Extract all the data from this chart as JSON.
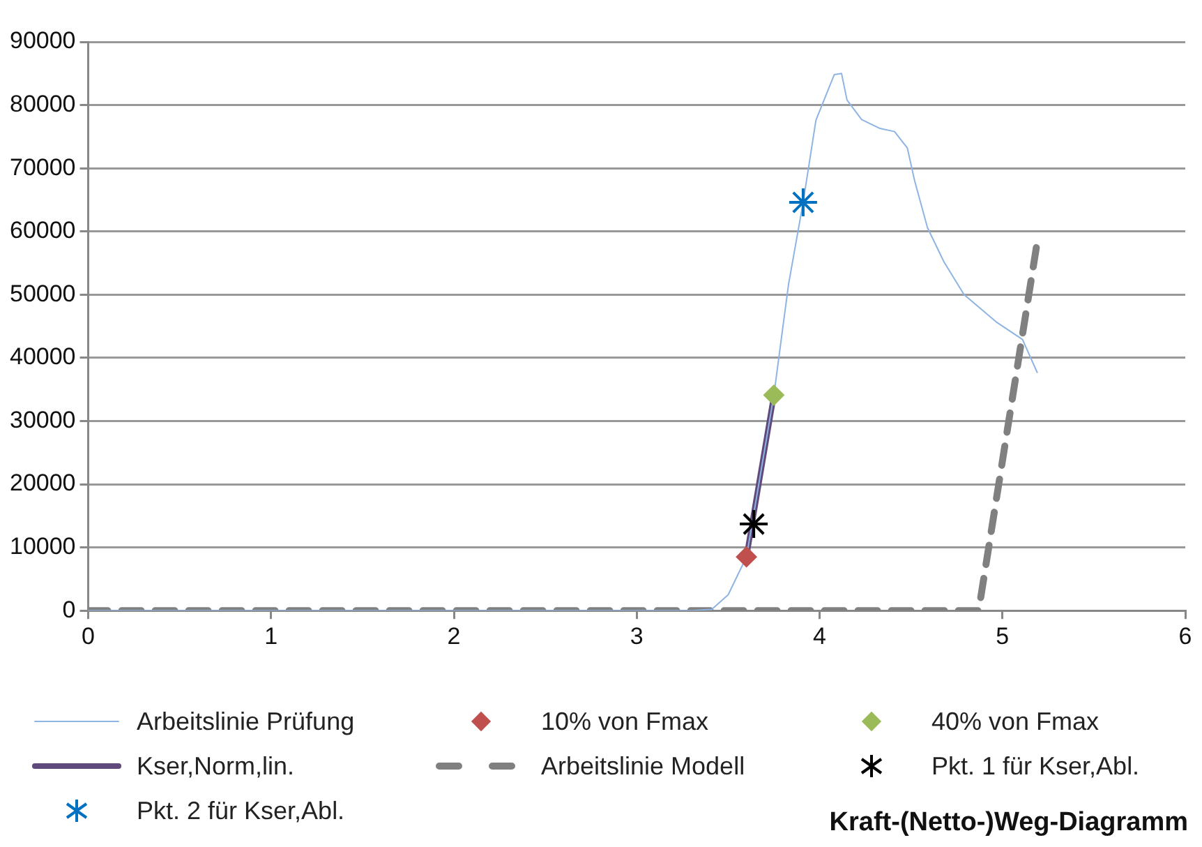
{
  "chart_data": {
    "type": "line",
    "title": "Kraft-(Netto-)Weg-Diagramm",
    "xlim": [
      0,
      6
    ],
    "xticks": [
      0,
      1,
      2,
      3,
      4,
      5,
      6
    ],
    "ylim": [
      0,
      90000
    ],
    "yticks": [
      0,
      10000,
      20000,
      30000,
      40000,
      50000,
      60000,
      70000,
      80000,
      90000
    ],
    "grid": "y",
    "legend": "bottom",
    "series": [
      {
        "name": "Arbeitslinie Prüfung",
        "type": "line",
        "color": "#8eb4e3",
        "marker": "none",
        "line_style": "solid",
        "x": [
          0,
          3.3,
          3.41,
          3.5,
          3.57,
          3.6,
          3.75,
          3.83,
          3.91,
          3.98,
          4.08,
          4.12,
          4.15,
          4.23,
          4.33,
          4.41,
          4.48,
          4.52,
          4.59,
          4.68,
          4.79,
          4.97,
          5.11,
          5.19
        ],
        "values": [
          0,
          0,
          200,
          2500,
          6700,
          8500,
          34100,
          51600,
          64600,
          77600,
          84800,
          85000,
          80800,
          77700,
          76300,
          75800,
          73200,
          68000,
          60600,
          55200,
          50000,
          45600,
          42900,
          37700
        ]
      },
      {
        "name": "10% von Fmax",
        "type": "scatter",
        "color": "#c0504d",
        "marker": "diamond",
        "x": [
          3.6
        ],
        "values": [
          8500
        ]
      },
      {
        "name": "40% von Fmax",
        "type": "scatter",
        "color": "#9bbb59",
        "marker": "diamond",
        "x": [
          3.75
        ],
        "values": [
          34100
        ]
      },
      {
        "name": "Kser,Norm,lin.",
        "type": "line",
        "color": "#604a7b",
        "marker": "none",
        "line_style": "solid",
        "x": [
          3.6,
          3.75
        ],
        "values": [
          8500,
          34100
        ]
      },
      {
        "name": "Arbeitslinie Modell",
        "type": "line",
        "color": "#808080",
        "marker": "none",
        "line_style": "dashed",
        "x": [
          0,
          4.87,
          5.19
        ],
        "values": [
          0,
          0,
          58300
        ]
      },
      {
        "name": "Pkt. 1 für Kser,Abl.",
        "type": "scatter",
        "color": "#000000",
        "marker": "cross",
        "x": [
          3.64
        ],
        "values": [
          13700
        ]
      },
      {
        "name": "Pkt. 2 für Kser,Abl.",
        "type": "scatter",
        "color": "#0070c0",
        "marker": "cross",
        "x": [
          3.91
        ],
        "values": [
          64600
        ]
      }
    ]
  }
}
